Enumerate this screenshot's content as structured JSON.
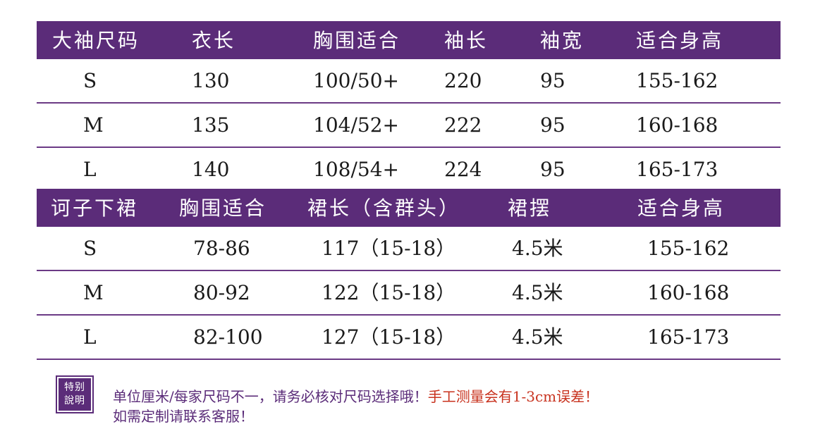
{
  "table1": {
    "headers": [
      "大袖尺码",
      "衣长",
      "胸围适合",
      "袖长",
      "袖宽",
      "适合身高"
    ],
    "rows": [
      {
        "size": "S",
        "length": "130",
        "bust": "100/50+",
        "sleeve_length": "220",
        "sleeve_width": "95",
        "height": "155-162"
      },
      {
        "size": "M",
        "length": "135",
        "bust": "104/52+",
        "sleeve_length": "222",
        "sleeve_width": "95",
        "height": "160-168"
      },
      {
        "size": "L",
        "length": "140",
        "bust": "108/54+",
        "sleeve_length": "224",
        "sleeve_width": "95",
        "height": "165-173"
      }
    ]
  },
  "table2": {
    "headers": [
      "诃子下裙",
      "胸围适合",
      "裙长（含群头）",
      "裙摆",
      "适合身高"
    ],
    "rows": [
      {
        "size": "S",
        "bust": "78-86",
        "skirt_length": "117（15-18）",
        "hem": "4.5米",
        "height": "155-162"
      },
      {
        "size": "M",
        "bust": "80-92",
        "skirt_length": "122（15-18）",
        "hem": "4.5米",
        "height": "160-168"
      },
      {
        "size": "L",
        "bust": "82-100",
        "skirt_length": "127（15-18）",
        "hem": "4.5米",
        "height": "165-173"
      }
    ]
  },
  "note": {
    "badge_line1": "特别",
    "badge_line2": "說明",
    "line1_main": "单位厘米/每家尺码不一，请务必核对尺码选择哦！",
    "line1_warning": "手工测量会有1-3cm误差！",
    "line2": "如需定制请联系客服！"
  },
  "colors": {
    "header_bg": "#5b2c79",
    "note_text": "#5b2c79",
    "warning_text": "#c8321e"
  }
}
